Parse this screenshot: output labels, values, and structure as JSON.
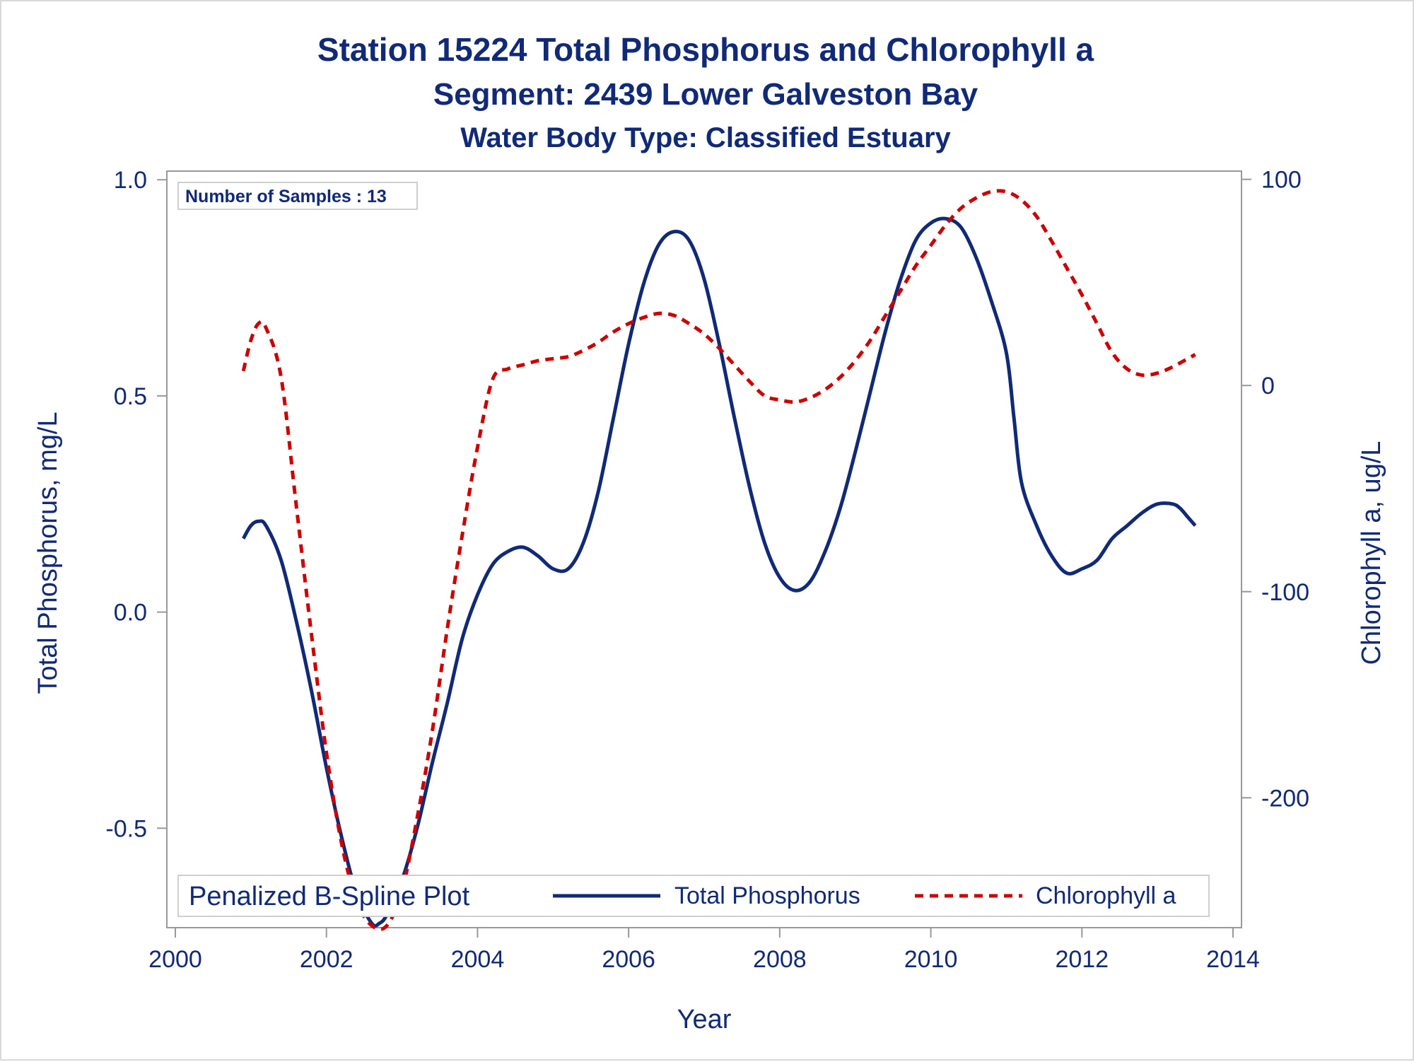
{
  "chart_data": {
    "type": "line",
    "title": "Station 15224  Total Phosphorus and Chlorophyll a",
    "subtitle": "Segment: 2439  Lower Galveston Bay",
    "subtitle2": "Water Body Type: Classified Estuary",
    "inset_label": "Number of Samples : 13",
    "xlabel": "Year",
    "ylabel_left": "Total Phosphorus, mg/L",
    "ylabel_right": "Chlorophyll a, ug/L",
    "xlim": [
      2000,
      2014
    ],
    "xticks": [
      2000,
      2002,
      2004,
      2006,
      2008,
      2010,
      2012,
      2014
    ],
    "xtick_labels": [
      "2000",
      "2002",
      "2004",
      "2006",
      "2008",
      "2010",
      "2012",
      "2014"
    ],
    "ylim_left": [
      -0.73,
      1.02
    ],
    "yticks_left": [
      -0.5,
      0.0,
      0.5,
      1.0
    ],
    "ytick_labels_left": [
      "-0.5",
      "0.0",
      "0.5",
      "1.0"
    ],
    "ylim_right": [
      -263,
      104
    ],
    "yticks_right": [
      -200,
      -100,
      0,
      100
    ],
    "ytick_labels_right": [
      "-200",
      "-100",
      "0",
      "100"
    ],
    "legend": {
      "title": "Penalized B-Spline Plot",
      "placement": "bottom-inside",
      "entries": [
        "Total Phosphorus",
        "Chlorophyll a"
      ]
    },
    "series": [
      {
        "name": "Total Phosphorus",
        "axis": "left",
        "color": "#112a77",
        "style": "solid",
        "x": [
          2000.9,
          2001.0,
          2001.1,
          2001.2,
          2001.4,
          2001.6,
          2001.8,
          2002.0,
          2002.2,
          2002.4,
          2002.6,
          2002.7,
          2002.8,
          2003.0,
          2003.2,
          2003.4,
          2003.6,
          2003.8,
          2004.0,
          2004.2,
          2004.4,
          2004.6,
          2004.8,
          2005.0,
          2005.2,
          2005.4,
          2005.6,
          2005.8,
          2006.0,
          2006.2,
          2006.4,
          2006.6,
          2006.8,
          2007.0,
          2007.2,
          2007.4,
          2007.6,
          2007.8,
          2008.0,
          2008.2,
          2008.4,
          2008.6,
          2008.8,
          2009.0,
          2009.2,
          2009.4,
          2009.6,
          2009.8,
          2010.0,
          2010.2,
          2010.4,
          2010.6,
          2010.8,
          2011.0,
          2011.1,
          2011.2,
          2011.4,
          2011.6,
          2011.8,
          2012.0,
          2012.2,
          2012.4,
          2012.6,
          2012.8,
          2013.0,
          2013.2,
          2013.3,
          2013.4,
          2013.5
        ],
        "y": [
          0.17,
          0.2,
          0.21,
          0.2,
          0.12,
          -0.02,
          -0.18,
          -0.36,
          -0.52,
          -0.65,
          -0.72,
          -0.72,
          -0.7,
          -0.62,
          -0.5,
          -0.35,
          -0.21,
          -0.06,
          0.04,
          0.11,
          0.14,
          0.15,
          0.13,
          0.1,
          0.1,
          0.16,
          0.28,
          0.45,
          0.62,
          0.76,
          0.85,
          0.88,
          0.86,
          0.77,
          0.62,
          0.45,
          0.29,
          0.16,
          0.08,
          0.05,
          0.07,
          0.14,
          0.24,
          0.37,
          0.51,
          0.65,
          0.77,
          0.86,
          0.9,
          0.91,
          0.89,
          0.82,
          0.72,
          0.6,
          0.45,
          0.3,
          0.2,
          0.13,
          0.09,
          0.1,
          0.12,
          0.17,
          0.2,
          0.23,
          0.25,
          0.25,
          0.24,
          0.22,
          0.2
        ]
      },
      {
        "name": "Chlorophyll a",
        "axis": "right",
        "color": "#cc0000",
        "style": "dashed",
        "x": [
          2000.9,
          2001.0,
          2001.1,
          2001.2,
          2001.4,
          2001.6,
          2001.8,
          2002.0,
          2002.2,
          2002.4,
          2002.6,
          2002.8,
          2003.0,
          2003.2,
          2003.4,
          2003.6,
          2003.8,
          2004.0,
          2004.2,
          2004.4,
          2004.6,
          2004.8,
          2005.0,
          2005.2,
          2005.4,
          2005.6,
          2005.8,
          2006.0,
          2006.2,
          2006.4,
          2006.6,
          2006.8,
          2007.0,
          2007.2,
          2007.4,
          2007.6,
          2007.8,
          2008.0,
          2008.2,
          2008.4,
          2008.6,
          2008.8,
          2009.0,
          2009.2,
          2009.4,
          2009.6,
          2009.8,
          2010.0,
          2010.2,
          2010.4,
          2010.6,
          2010.8,
          2011.0,
          2011.2,
          2011.4,
          2011.6,
          2011.8,
          2012.0,
          2012.2,
          2012.4,
          2012.6,
          2012.8,
          2013.0,
          2013.2,
          2013.4,
          2013.5
        ],
        "y": [
          7,
          22,
          30,
          28,
          4,
          -58,
          -120,
          -178,
          -222,
          -250,
          -262,
          -262,
          -245,
          -210,
          -168,
          -118,
          -72,
          -30,
          3,
          8,
          10,
          12,
          13,
          14,
          17,
          21,
          26,
          30,
          33,
          35,
          34,
          30,
          25,
          18,
          10,
          2,
          -5,
          -7,
          -8,
          -6,
          -2,
          4,
          12,
          22,
          34,
          46,
          58,
          68,
          78,
          86,
          91,
          94,
          94,
          90,
          82,
          70,
          57,
          44,
          30,
          16,
          8,
          5,
          6,
          9,
          13,
          15
        ]
      }
    ]
  }
}
